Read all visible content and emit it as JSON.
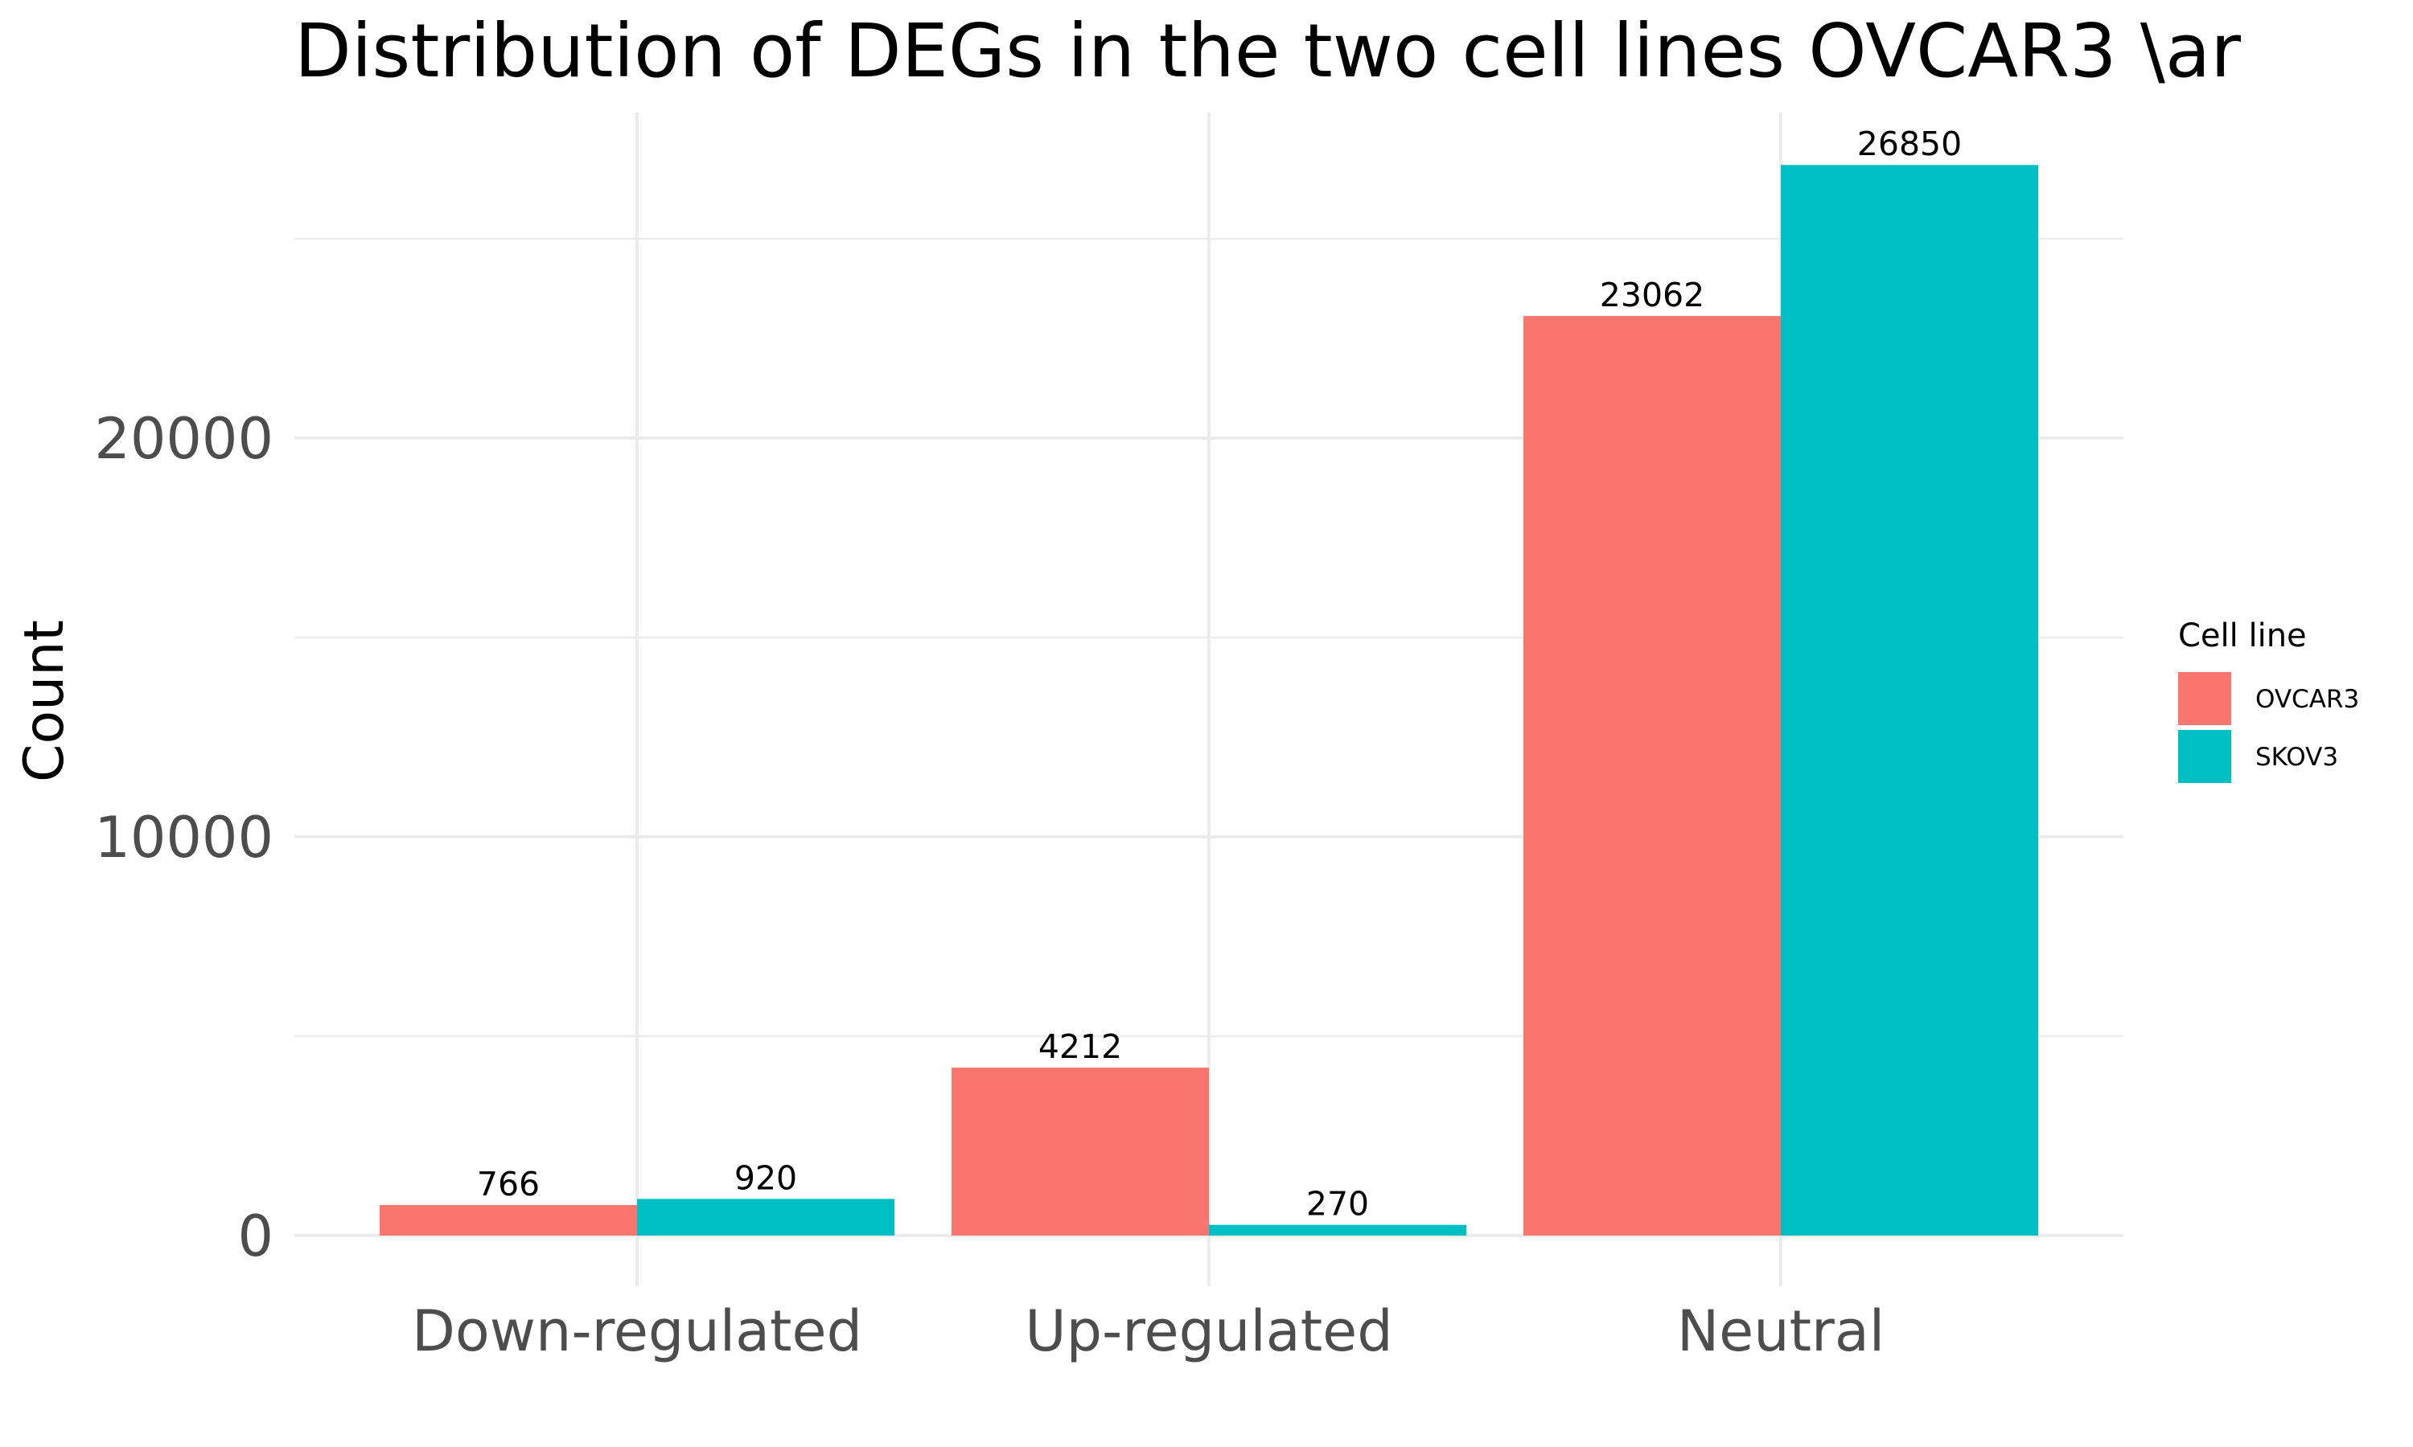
{
  "chart_data": {
    "type": "bar",
    "title": "Distribution of DEGs in the two cell lines OVCAR3 \\ar",
    "xlabel": "",
    "ylabel": "Count",
    "categories": [
      "Down-regulated",
      "Up-regulated",
      "Neutral"
    ],
    "series": [
      {
        "name": "OVCAR3",
        "color": "#f8766d",
        "values": [
          766,
          4212,
          23062
        ]
      },
      {
        "name": "SKOV3",
        "color": "#00bfc4",
        "values": [
          920,
          270,
          26850
        ]
      }
    ],
    "ylim": [
      0,
      28000
    ],
    "yticks": [
      0,
      10000,
      20000
    ],
    "ytick_labels": [
      "0",
      "10000",
      "20000"
    ],
    "grid": true,
    "legend": {
      "title": "Cell line",
      "position": "right"
    }
  }
}
